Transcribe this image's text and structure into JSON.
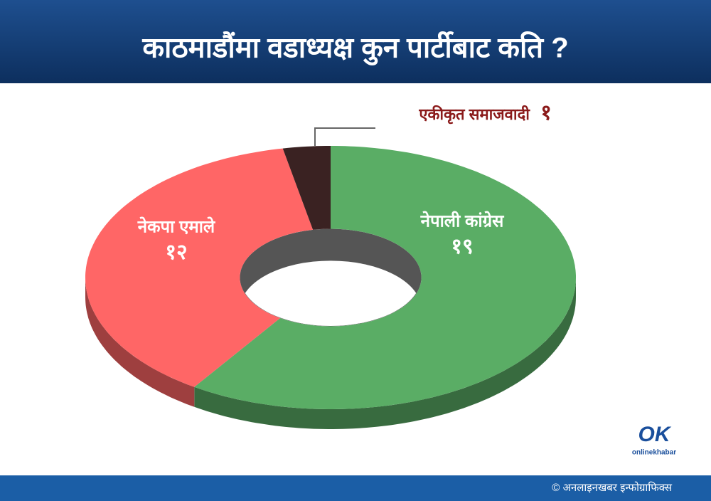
{
  "chart_data": {
    "type": "donut3d",
    "title": "काठमाडौंमा वडाध्यक्ष कुन पार्टीबाट कति ?",
    "categories": [
      "नेपाली कांग्रेस",
      "नेकपा एमाले",
      "एकीकृत समाजवादी"
    ],
    "values": [
      19,
      12,
      1
    ],
    "value_labels": [
      "१९",
      "१२",
      "१"
    ],
    "colors": [
      "#5aad65",
      "#ff6666",
      "#3a2222"
    ]
  },
  "footer": {
    "credit": "© अनलाइनखबर इन्फोग्राफिक्स"
  },
  "logo": {
    "mark": "OK",
    "text": "onlinekhabar"
  }
}
